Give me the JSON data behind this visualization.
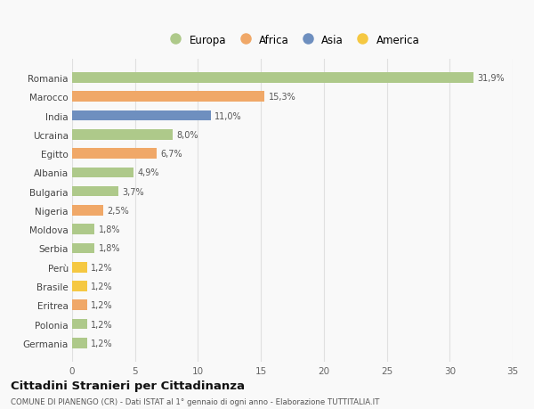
{
  "categories": [
    "Romania",
    "Marocco",
    "India",
    "Ucraina",
    "Egitto",
    "Albania",
    "Bulgaria",
    "Nigeria",
    "Moldova",
    "Serbia",
    "Perù",
    "Brasile",
    "Eritrea",
    "Polonia",
    "Germania"
  ],
  "values": [
    31.9,
    15.3,
    11.0,
    8.0,
    6.7,
    4.9,
    3.7,
    2.5,
    1.8,
    1.8,
    1.2,
    1.2,
    1.2,
    1.2,
    1.2
  ],
  "labels": [
    "31,9%",
    "15,3%",
    "11,0%",
    "8,0%",
    "6,7%",
    "4,9%",
    "3,7%",
    "2,5%",
    "1,8%",
    "1,8%",
    "1,2%",
    "1,2%",
    "1,2%",
    "1,2%",
    "1,2%"
  ],
  "colors": [
    "#aec98a",
    "#f0a868",
    "#6e8fbf",
    "#aec98a",
    "#f0a868",
    "#aec98a",
    "#aec98a",
    "#f0a868",
    "#aec98a",
    "#aec98a",
    "#f5c842",
    "#f5c842",
    "#f0a868",
    "#aec98a",
    "#aec98a"
  ],
  "legend_labels": [
    "Europa",
    "Africa",
    "Asia",
    "America"
  ],
  "legend_colors": [
    "#aec98a",
    "#f0a868",
    "#6e8fbf",
    "#f5c842"
  ],
  "title": "Cittadini Stranieri per Cittadinanza",
  "subtitle": "COMUNE DI PIANENGO (CR) - Dati ISTAT al 1° gennaio di ogni anno - Elaborazione TUTTITALIA.IT",
  "xlim": [
    0,
    35
  ],
  "xticks": [
    0,
    5,
    10,
    15,
    20,
    25,
    30,
    35
  ],
  "bg_color": "#f9f9f9",
  "grid_color": "#e0e0e0",
  "bar_height": 0.55
}
